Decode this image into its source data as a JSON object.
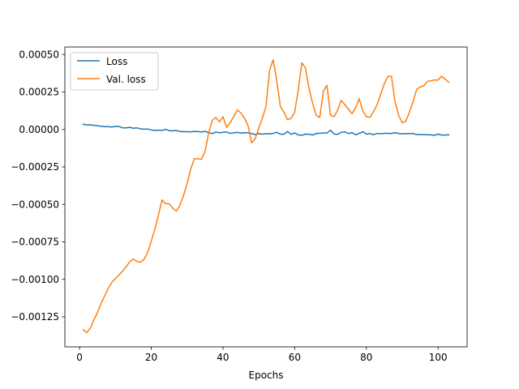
{
  "chart_data": {
    "type": "line",
    "title": "",
    "xlabel": "Epochs",
    "ylabel": "",
    "xlim": [
      -4.1,
      108.1
    ],
    "ylim": [
      -0.00145,
      0.00055
    ],
    "grid": false,
    "legend_position": "top-left",
    "x_ticks": [
      0,
      20,
      40,
      60,
      80,
      100
    ],
    "x_tick_labels": [
      "0",
      "20",
      "40",
      "60",
      "80",
      "100"
    ],
    "y_ticks": [
      -0.00125,
      -0.001,
      -0.00075,
      -0.0005,
      -0.00025,
      0,
      0.00025,
      0.0005
    ],
    "y_tick_labels": [
      "−0.00125",
      "−0.00100",
      "−0.00075",
      "−0.00050",
      "−0.00025",
      "0.00000",
      "0.00025",
      "0.00050"
    ],
    "series": [
      {
        "name": "Loss",
        "color": "#1f77b4",
        "x": [
          1,
          2,
          3,
          4,
          5,
          6,
          7,
          8,
          9,
          10,
          11,
          12,
          13,
          14,
          15,
          16,
          17,
          18,
          19,
          20,
          21,
          22,
          23,
          24,
          25,
          26,
          27,
          28,
          29,
          30,
          31,
          32,
          33,
          34,
          35,
          36,
          37,
          38,
          39,
          40,
          41,
          42,
          43,
          44,
          45,
          46,
          47,
          48,
          49,
          50,
          51,
          52,
          53,
          54,
          55,
          56,
          57,
          58,
          59,
          60,
          61,
          62,
          63,
          64,
          65,
          66,
          67,
          68,
          69,
          70,
          71,
          72,
          73,
          74,
          75,
          76,
          77,
          78,
          79,
          80,
          81,
          82,
          83,
          84,
          85,
          86,
          87,
          88,
          89,
          90,
          91,
          92,
          93,
          94,
          95,
          96,
          97,
          98,
          99,
          100,
          101,
          102,
          103
        ],
        "values": [
          3.5e-05,
          3e-05,
          3.1e-05,
          2.8e-05,
          2.5e-05,
          2.1e-05,
          1.9e-05,
          1.9e-05,
          1.6e-05,
          2e-05,
          2e-05,
          1.1e-05,
          1.1e-05,
          1.4e-05,
          8e-06,
          1.1e-05,
          4e-06,
          2e-06,
          3e-06,
          -3e-06,
          -7e-06,
          -5e-06,
          -7e-06,
          1e-06,
          -8e-06,
          -9e-06,
          -7e-06,
          -1.3e-05,
          -1.5e-05,
          -1.5e-05,
          -1.6e-05,
          -1.3e-05,
          -1.4e-05,
          -1.7e-05,
          -1.2e-05,
          -2.1e-05,
          -2.8e-05,
          -1.7e-05,
          -2.2e-05,
          -1.9e-05,
          -1.7e-05,
          -2.6e-05,
          -2.3e-05,
          -1.9e-05,
          -2.5e-05,
          -2.1e-05,
          -2.2e-05,
          -2.7e-05,
          -3.5e-05,
          -2.7e-05,
          -3.2e-05,
          -2.8e-05,
          -2.9e-05,
          -2.6e-05,
          -1.9e-05,
          -3.1e-05,
          -3.2e-05,
          -1.3e-05,
          -3.2e-05,
          -2.3e-05,
          -3.6e-05,
          -3.9e-05,
          -3.1e-05,
          -3.2e-05,
          -3.7e-05,
          -2.7e-05,
          -2.6e-05,
          -2.3e-05,
          -2.4e-05,
          -5e-06,
          -3.1e-05,
          -3.2e-05,
          -1.9e-05,
          -1.6e-05,
          -2.7e-05,
          -2.1e-05,
          -3.6e-05,
          -2.6e-05,
          -1.5e-05,
          -3.1e-05,
          -2.8e-05,
          -3.5e-05,
          -2.6e-05,
          -2.9e-05,
          -2.6e-05,
          -2.6e-05,
          -2.7e-05,
          -2.1e-05,
          -2.7e-05,
          -3e-05,
          -2.8e-05,
          -2.8e-05,
          -2.7e-05,
          -3.4e-05,
          -3.3e-05,
          -3.5e-05,
          -3.5e-05,
          -3.6e-05,
          -3.9e-05,
          -3.1e-05,
          -3.7e-05,
          -3.7e-05,
          -3.6e-05
        ]
      },
      {
        "name": "Val. loss",
        "color": "#ff7f0e",
        "x": [
          1,
          2,
          3,
          4,
          5,
          6,
          7,
          8,
          9,
          10,
          11,
          12,
          13,
          14,
          15,
          16,
          17,
          18,
          19,
          20,
          21,
          22,
          23,
          24,
          25,
          26,
          27,
          28,
          29,
          30,
          31,
          32,
          33,
          34,
          35,
          36,
          37,
          38,
          39,
          40,
          41,
          42,
          43,
          44,
          45,
          46,
          47,
          48,
          49,
          50,
          51,
          52,
          53,
          54,
          55,
          56,
          57,
          58,
          59,
          60,
          61,
          62,
          63,
          64,
          65,
          66,
          67,
          68,
          69,
          70,
          71,
          72,
          73,
          74,
          75,
          76,
          77,
          78,
          79,
          80,
          81,
          82,
          83,
          84,
          85,
          86,
          87,
          88,
          89,
          90,
          91,
          92,
          93,
          94,
          95,
          96,
          97,
          98,
          99,
          100,
          101,
          102,
          103
        ],
        "values": [
          -0.001335,
          -0.001355,
          -0.001325,
          -0.00127,
          -0.00122,
          -0.00116,
          -0.00111,
          -0.00106,
          -0.00102,
          -0.000995,
          -0.00097,
          -0.000945,
          -0.000915,
          -0.000882,
          -0.000865,
          -0.00088,
          -0.000885,
          -0.000865,
          -0.00082,
          -0.000745,
          -0.000665,
          -0.00057,
          -0.00047,
          -0.000495,
          -0.000495,
          -0.000525,
          -0.000545,
          -0.000505,
          -0.00044,
          -0.00036,
          -0.000265,
          -0.000195,
          -0.000195,
          -0.0002,
          -0.000145,
          -2.5e-05,
          6e-05,
          8e-05,
          5e-05,
          8.5e-05,
          1.5e-05,
          4.5e-05,
          8.5e-05,
          0.00013,
          0.00011,
          7.5e-05,
          2.5e-05,
          -9e-05,
          -6e-05,
          1e-05,
          7.5e-05,
          0.000155,
          0.000395,
          0.000465,
          0.000325,
          0.000155,
          0.000115,
          6.5e-05,
          7.5e-05,
          0.000115,
          0.000265,
          0.000445,
          0.00041,
          0.000275,
          0.000175,
          9.5e-05,
          8e-05,
          0.000255,
          0.000295,
          9.5e-05,
          8.5e-05,
          0.00013,
          0.000195,
          0.000165,
          0.000135,
          0.000105,
          0.000145,
          0.000205,
          0.000125,
          8.5e-05,
          8e-05,
          0.00012,
          0.000165,
          0.000235,
          0.000305,
          0.000355,
          0.000355,
          0.000185,
          9.5e-05,
          4.5e-05,
          5.5e-05,
          0.000115,
          0.000185,
          0.000265,
          0.000285,
          0.00029,
          0.00032,
          0.000325,
          0.00033,
          0.00033,
          0.000355,
          0.000335,
          0.000315
        ]
      }
    ]
  }
}
